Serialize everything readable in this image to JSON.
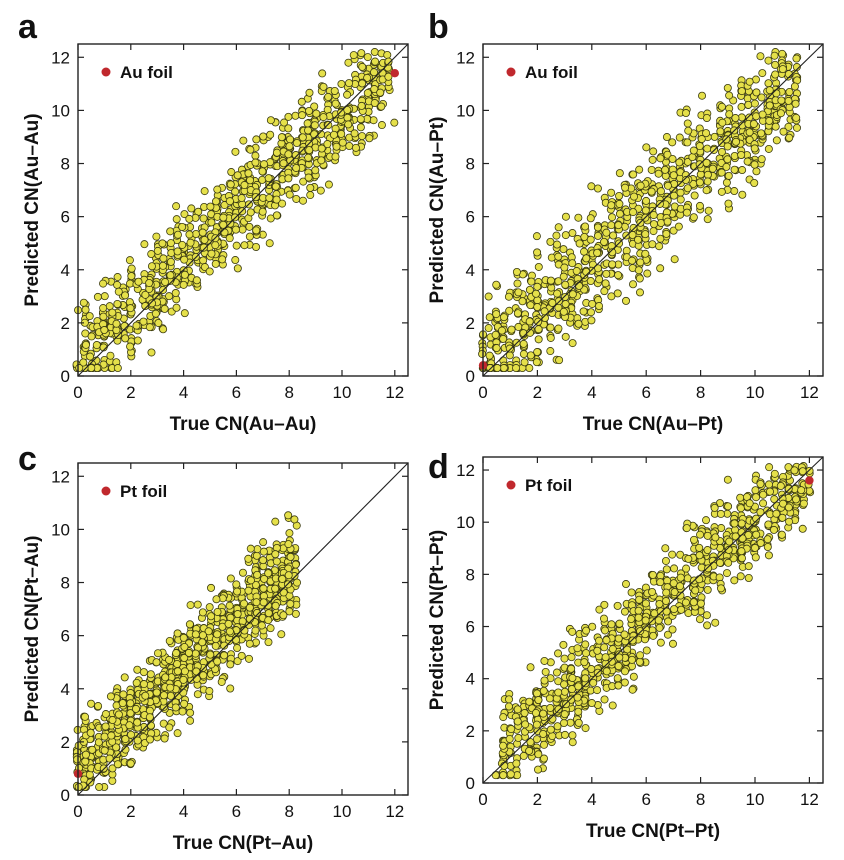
{
  "chart_data": [
    {
      "panel": "a",
      "type": "scatter",
      "xlabel": "True CN(Au–Au)",
      "ylabel": "Predicted CN(Au–Au)",
      "xlim": [
        0,
        12.5
      ],
      "ylim": [
        0,
        12.5
      ],
      "xticks": [
        "0",
        "2",
        "4",
        "6",
        "8",
        "10",
        "12"
      ],
      "yticks": [
        "0",
        "2",
        "4",
        "6",
        "8",
        "10",
        "12"
      ],
      "diagonal": true,
      "legend_placement": "top-left",
      "colors": {
        "points": "#e5e04a",
        "points_edge": "#3a3a10",
        "foil": "#c0282d"
      },
      "series": [
        {
          "name": "Au foil",
          "points": [
            [
              12,
              11.4
            ]
          ]
        },
        {
          "name": "",
          "density_band": {
            "x_range": [
              0,
              12
            ],
            "line": [
              0.55,
              0.94
            ],
            "spread": 2.2
          }
        }
      ]
    },
    {
      "panel": "b",
      "type": "scatter",
      "xlabel": "True CN(Au–Pt)",
      "ylabel": "Predicted CN(Au–Pt)",
      "xlim": [
        0,
        12.5
      ],
      "ylim": [
        0,
        12.5
      ],
      "xticks": [
        "0",
        "2",
        "4",
        "6",
        "8",
        "10",
        "12"
      ],
      "yticks": [
        "0",
        "2",
        "4",
        "6",
        "8",
        "10",
        "12"
      ],
      "diagonal": true,
      "legend_placement": "top-left",
      "colors": {
        "points": "#e5e04a",
        "points_edge": "#3a3a10",
        "foil": "#c0282d"
      },
      "series": [
        {
          "name": "Au foil",
          "points": [
            [
              0,
              0.4
            ]
          ]
        },
        {
          "name": "",
          "density_band": {
            "x_range": [
              0,
              11.6
            ],
            "line": [
              0.55,
              0.93
            ],
            "spread": 2.6
          }
        }
      ]
    },
    {
      "panel": "c",
      "type": "scatter",
      "xlabel": "True CN(Pt–Au)",
      "ylabel": "Predicted CN(Pt–Au)",
      "xlim": [
        0,
        12.5
      ],
      "ylim": [
        0,
        12.5
      ],
      "xticks": [
        "0",
        "2",
        "4",
        "6",
        "8",
        "10",
        "12"
      ],
      "yticks": [
        "0",
        "2",
        "4",
        "6",
        "8",
        "10",
        "12"
      ],
      "diagonal": true,
      "legend_placement": "top-left",
      "colors": {
        "points": "#e5e04a",
        "points_edge": "#3a3a10",
        "foil": "#c0282d"
      },
      "series": [
        {
          "name": "Pt foil",
          "points": [
            [
              0,
              0.8
            ]
          ]
        },
        {
          "name": "",
          "density_band": {
            "x_range": [
              0,
              8.3
            ],
            "line": [
              1.0,
              0.94
            ],
            "spread": 2.0
          }
        }
      ]
    },
    {
      "panel": "d",
      "type": "scatter",
      "xlabel": "True CN(Pt–Pt)",
      "ylabel": "Predicted CN(Pt–Pt)",
      "xlim": [
        0,
        12.5
      ],
      "ylim": [
        0,
        12.5
      ],
      "xticks": [
        "0",
        "2",
        "4",
        "6",
        "8",
        "10",
        "12"
      ],
      "yticks": [
        "0",
        "2",
        "4",
        "6",
        "8",
        "10",
        "12"
      ],
      "diagonal": true,
      "legend_placement": "top-left",
      "colors": {
        "points": "#e5e04a",
        "points_edge": "#3a3a10",
        "foil": "#c0282d"
      },
      "series": [
        {
          "name": "Pt foil",
          "points": [
            [
              12,
              11.6
            ]
          ]
        },
        {
          "name": "",
          "density_band": {
            "x_range": [
              0.5,
              12
            ],
            "line": [
              0.6,
              0.95
            ],
            "spread": 2.2
          }
        }
      ]
    }
  ]
}
